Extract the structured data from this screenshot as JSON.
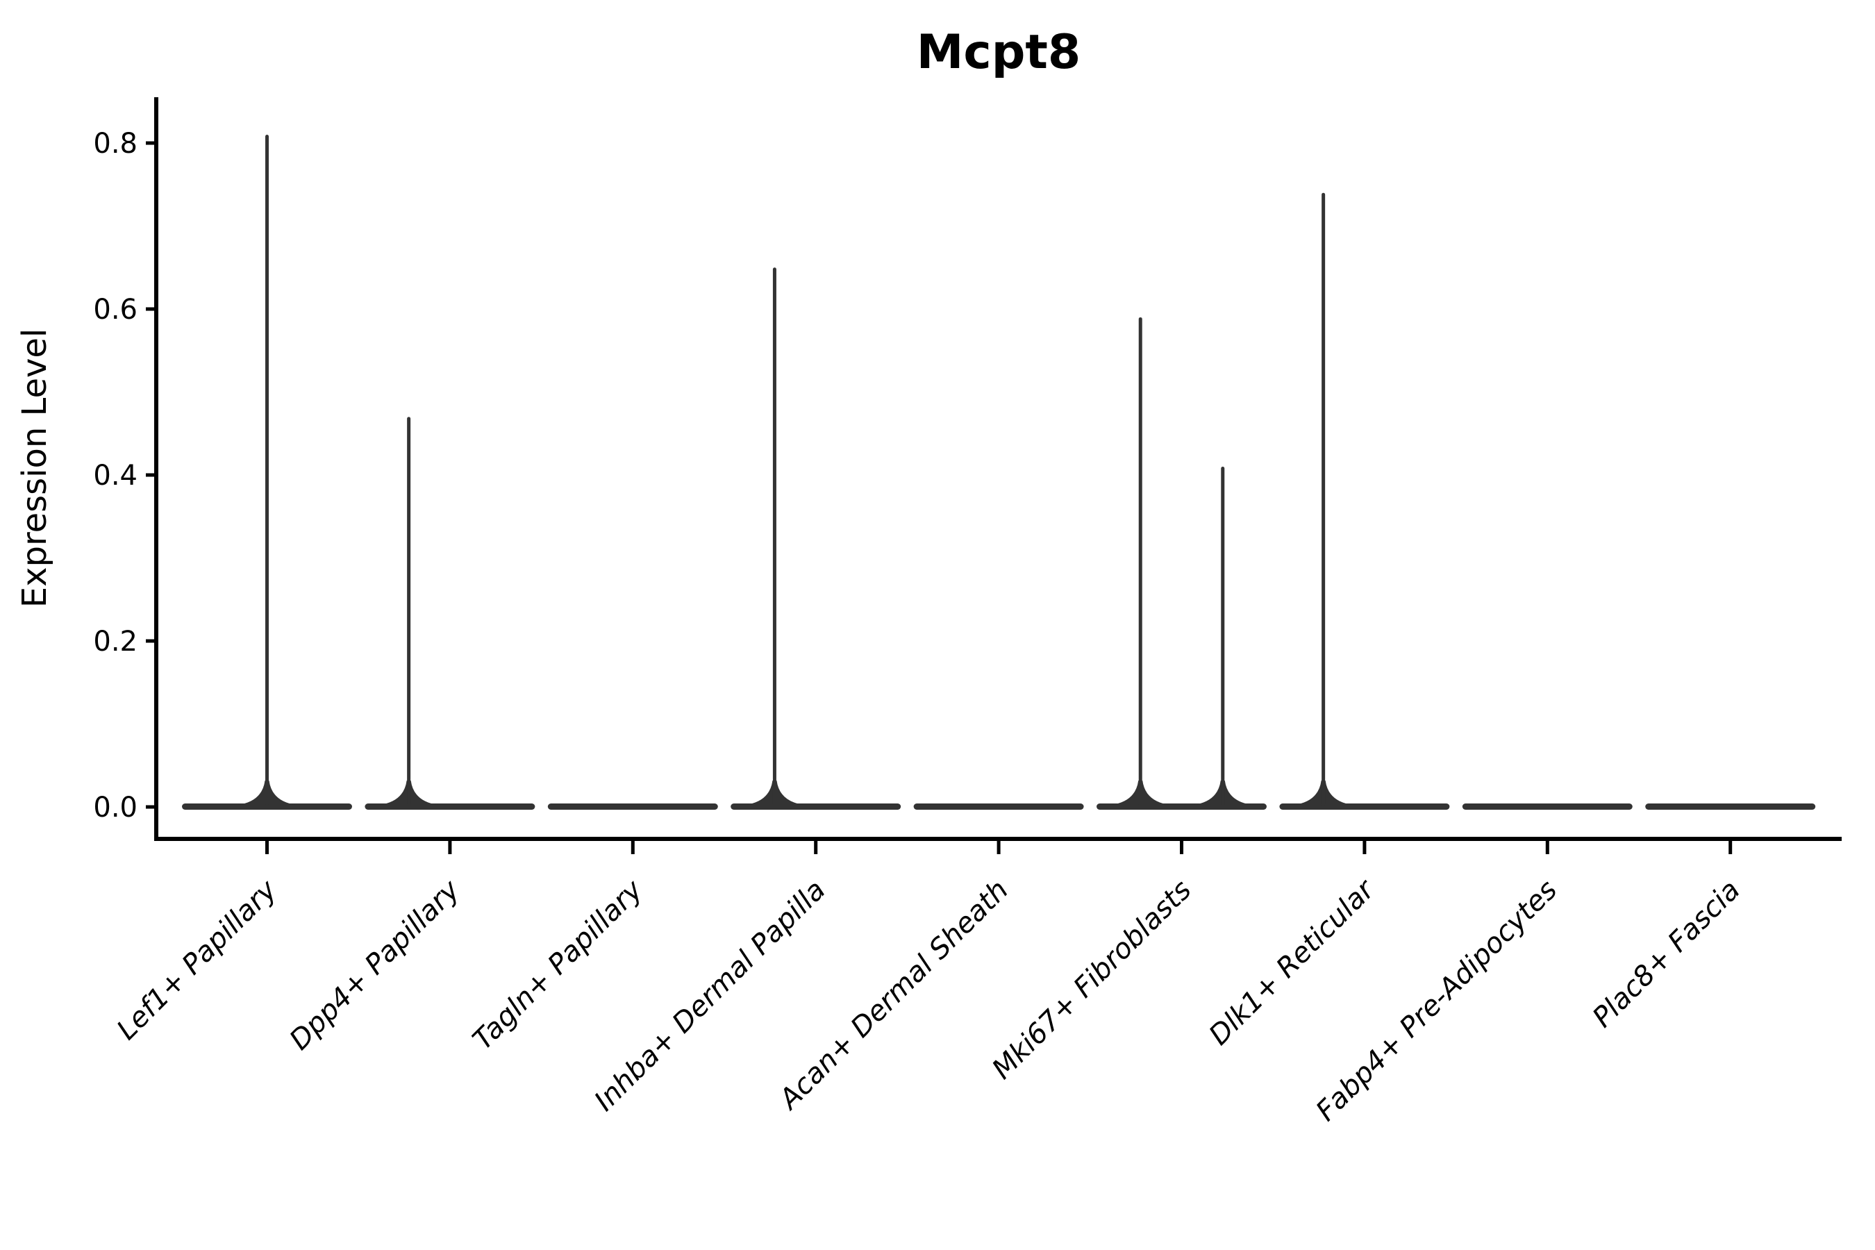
{
  "figure": {
    "background": "#ffffff",
    "axis_color": "#000000",
    "text_color": "#000000",
    "violin_color": "#333333"
  },
  "chart_data": {
    "type": "violin",
    "title": "Mcpt8",
    "xlabel": "",
    "ylabel": "Expression Level",
    "ylim": [
      0,
      0.85
    ],
    "yticks": [
      0.0,
      0.2,
      0.4,
      0.6,
      0.8
    ],
    "ytick_labels": [
      "0.0",
      "0.2",
      "0.4",
      "0.6",
      "0.8"
    ],
    "grid": false,
    "legend_position": "none",
    "x_tick_rotation_deg": 45,
    "violin_width_frac": 0.93,
    "categories": [
      "Lef1+ Papillary",
      "Dpp4+ Papillary",
      "Tagln+ Papillary",
      "Inhba+ Dermal Papilla",
      "Acan+ Dermal Sheath",
      "Mki67+ Fibroblasts",
      "Dlk1+ Reticular",
      "Fabp4+ Pre-Adipocytes",
      "Plac8+ Fascia"
    ],
    "violins": [
      {
        "category": "Lef1+ Papillary",
        "max_expression": 0.81,
        "spikes": [
          {
            "value": 0.81,
            "offset_frac": 0.0
          }
        ]
      },
      {
        "category": "Dpp4+ Papillary",
        "max_expression": 0.47,
        "spikes": [
          {
            "value": 0.47,
            "offset_frac": -0.225
          }
        ]
      },
      {
        "category": "Tagln+ Papillary",
        "max_expression": 0.0,
        "spikes": []
      },
      {
        "category": "Inhba+ Dermal Papilla",
        "max_expression": 0.65,
        "spikes": [
          {
            "value": 0.65,
            "offset_frac": -0.225
          }
        ]
      },
      {
        "category": "Acan+ Dermal Sheath",
        "max_expression": 0.0,
        "spikes": []
      },
      {
        "category": "Mki67+ Fibroblasts",
        "max_expression": 0.59,
        "spikes": [
          {
            "value": 0.59,
            "offset_frac": -0.225
          },
          {
            "value": 0.41,
            "offset_frac": 0.225
          }
        ]
      },
      {
        "category": "Dlk1+ Reticular",
        "max_expression": 0.74,
        "spikes": [
          {
            "value": 0.74,
            "offset_frac": -0.225
          }
        ]
      },
      {
        "category": "Fabp4+ Pre-Adipocytes",
        "max_expression": 0.0,
        "spikes": []
      },
      {
        "category": "Plac8+ Fascia",
        "max_expression": 0.0,
        "spikes": []
      }
    ]
  }
}
